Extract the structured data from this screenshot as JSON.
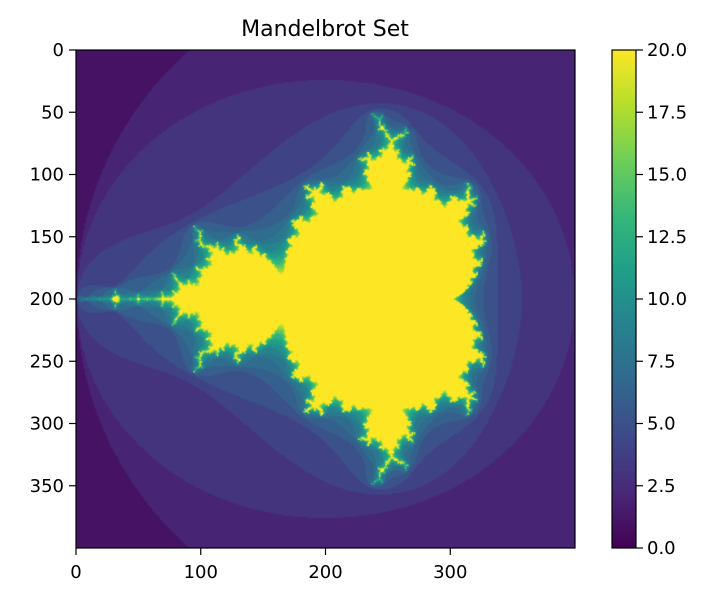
{
  "chart_data": {
    "type": "heatmap",
    "title": "Mandelbrot Set",
    "xlabel": "",
    "ylabel": "",
    "image_shape": [
      400,
      400
    ],
    "x_ticks": [
      0,
      100,
      200,
      300
    ],
    "y_ticks": [
      0,
      50,
      100,
      150,
      200,
      250,
      300,
      350
    ],
    "xlim": [
      0,
      400
    ],
    "ylim": [
      400,
      0
    ],
    "y_inverted": true,
    "complex_plane": {
      "re_min": -2.0,
      "re_max": 1.0,
      "im_min": -1.5,
      "im_max": 1.5
    },
    "max_iter": 20,
    "colormap": "viridis",
    "colorbar": {
      "range": [
        0.0,
        20.0
      ],
      "ticks": [
        "0.0",
        "2.5",
        "5.0",
        "7.5",
        "10.0",
        "12.5",
        "15.0",
        "17.5",
        "20.0"
      ]
    },
    "grid": false
  },
  "colors": {
    "viridis": [
      "#440154",
      "#482878",
      "#3e4989",
      "#31688e",
      "#26828e",
      "#1f9e89",
      "#35b779",
      "#6ece58",
      "#b5de2b",
      "#fde725"
    ]
  }
}
